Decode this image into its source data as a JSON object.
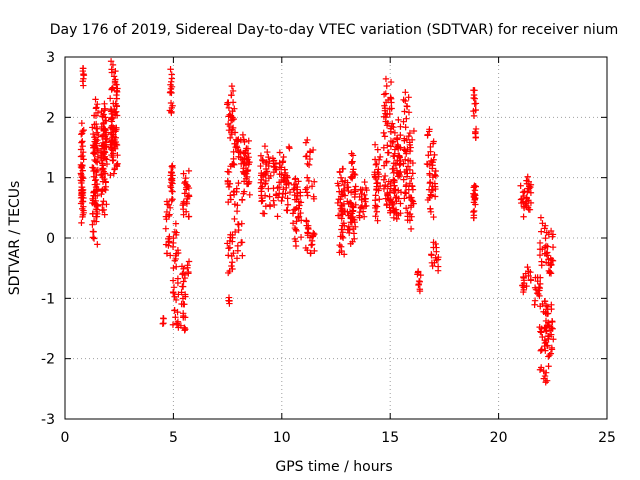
{
  "chart_data": {
    "type": "scatter",
    "title": "Day 176 of 2019, Sidereal Day-to-day VTEC variation (SDTVAR) for receiver nium",
    "xlabel": "GPS time / hours",
    "ylabel": "SDTVAR / TECUs",
    "xlim": [
      0,
      25
    ],
    "ylim": [
      -3,
      3
    ],
    "xticks": [
      0,
      5,
      10,
      15,
      20,
      25
    ],
    "yticks": [
      -3,
      -2,
      -1,
      0,
      1,
      2,
      3
    ],
    "grid": true,
    "marker": "+",
    "color": "#ff0000",
    "segments": [
      {
        "x0": 0.7,
        "x1": 0.9,
        "pts": [
          [
            0.9,
            1.9
          ],
          [
            0.5,
            1.2
          ],
          [
            0.6,
            0.7
          ],
          [
            0.3,
            0.9
          ]
        ]
      },
      {
        "x0": 0.8,
        "x1": 0.9,
        "pts": [
          [
            2.85,
            2.55
          ]
        ]
      },
      {
        "x0": 1.2,
        "x1": 1.6,
        "pts": [
          [
            1.8,
            1.0
          ],
          [
            0.4,
            1.6
          ],
          [
            2.3,
            1.4
          ],
          [
            0.8,
            -0.1
          ],
          [
            0.4,
            0.9
          ]
        ]
      },
      {
        "x0": 1.6,
        "x1": 2.0,
        "pts": [
          [
            2.2,
            1.3
          ],
          [
            0.8,
            1.9
          ],
          [
            1.5,
            0.4
          ],
          [
            2.1,
            1.1
          ]
        ]
      },
      {
        "x0": 2.0,
        "x1": 2.5,
        "pts": [
          [
            1.4,
            2.2
          ],
          [
            1.0,
            2.6
          ],
          [
            1.2,
            1.8
          ],
          [
            2.95,
            1.5
          ]
        ]
      },
      {
        "x0": 4.4,
        "x1": 4.6,
        "pts": [
          [
            -1.38,
            -1.35
          ]
        ]
      },
      {
        "x0": 4.6,
        "x1": 4.9,
        "pts": [
          [
            0.6,
            0.3
          ],
          [
            0.1,
            -0.3
          ]
        ]
      },
      {
        "x0": 4.8,
        "x1": 5.0,
        "pts": [
          [
            2.75,
            2.4
          ],
          [
            2.2,
            2.1
          ]
        ]
      },
      {
        "x0": 4.8,
        "x1": 5.0,
        "pts": [
          [
            1.1,
            0.6
          ],
          [
            1.2,
            0.9
          ]
        ]
      },
      {
        "x0": 4.9,
        "x1": 5.3,
        "pts": [
          [
            0.2,
            -0.5
          ],
          [
            -0.7,
            -1.0
          ],
          [
            -1.2,
            -1.5
          ]
        ]
      },
      {
        "x0": 5.3,
        "x1": 5.6,
        "pts": [
          [
            -0.5,
            -1.2
          ],
          [
            -1.55,
            -1.3
          ]
        ]
      },
      {
        "x0": 5.3,
        "x1": 5.8,
        "pts": [
          [
            0.9,
            0.3
          ],
          [
            1.1,
            0.6
          ],
          [
            -0.6,
            -0.4
          ]
        ]
      },
      {
        "x0": 7.5,
        "x1": 7.6,
        "pts": [
          [
            -1.05,
            -1.0
          ]
        ]
      },
      {
        "x0": 7.4,
        "x1": 7.9,
        "pts": [
          [
            2.5,
            1.8
          ],
          [
            1.3,
            0.6
          ],
          [
            0.1,
            -0.6
          ],
          [
            1.7,
            2.2
          ]
        ]
      },
      {
        "x0": 7.6,
        "x1": 8.3,
        "pts": [
          [
            1.6,
            1.2
          ],
          [
            0.9,
            0.5
          ],
          [
            1.4,
            1.7
          ],
          [
            0.3,
            -0.3
          ]
        ]
      },
      {
        "x0": 8.1,
        "x1": 8.6,
        "pts": [
          [
            1.5,
            1.1
          ],
          [
            0.7,
            1.3
          ],
          [
            1.7,
            0.9
          ]
        ]
      },
      {
        "x0": 8.9,
        "x1": 9.6,
        "pts": [
          [
            1.5,
            0.9
          ],
          [
            0.4,
            1.1
          ],
          [
            1.3,
            0.6
          ]
        ]
      },
      {
        "x0": 9.4,
        "x1": 10.6,
        "pts": [
          [
            1.2,
            0.7
          ],
          [
            1.0,
            1.5
          ],
          [
            0.4,
            0.8
          ],
          [
            1.1,
            0.6
          ],
          [
            0.9,
            1.3
          ]
        ]
      },
      {
        "x0": 10.4,
        "x1": 11.0,
        "pts": [
          [
            0.9,
            0.3
          ],
          [
            0.5,
            1.0
          ],
          [
            -0.1,
            0.4
          ]
        ]
      },
      {
        "x0": 11.0,
        "x1": 11.6,
        "pts": [
          [
            0.3,
            -0.2
          ],
          [
            0.6,
            1.0
          ],
          [
            0.2,
            -0.2
          ],
          [
            1.6,
            1.2
          ]
        ]
      },
      {
        "x0": 12.5,
        "x1": 13.0,
        "pts": [
          [
            0.3,
            0.9
          ],
          [
            -0.3,
            0.5
          ],
          [
            1.2,
            0.4
          ]
        ]
      },
      {
        "x0": 12.9,
        "x1": 13.5,
        "pts": [
          [
            1.4,
            0.8
          ],
          [
            0.1,
            0.7
          ],
          [
            0.5,
            -0.1
          ],
          [
            1.0,
            0.3
          ]
        ]
      },
      {
        "x0": 13.5,
        "x1": 14.0,
        "pts": [
          [
            0.9,
            0.3
          ],
          [
            0.8,
            0.4
          ]
        ]
      },
      {
        "x0": 14.2,
        "x1": 14.6,
        "pts": [
          [
            1.5,
            0.8
          ],
          [
            0.3,
            1.1
          ]
        ]
      },
      {
        "x0": 14.6,
        "x1": 15.2,
        "pts": [
          [
            2.6,
            1.9
          ],
          [
            1.2,
            2.3
          ],
          [
            0.4,
            1.0
          ],
          [
            0.9,
            0.5
          ]
        ]
      },
      {
        "x0": 15.0,
        "x1": 15.6,
        "pts": [
          [
            1.8,
            1.0
          ],
          [
            0.6,
            1.4
          ],
          [
            0.3,
            1.9
          ],
          [
            0.5,
            0.4
          ]
        ]
      },
      {
        "x0": 15.5,
        "x1": 16.2,
        "pts": [
          [
            2.4,
            1.4
          ],
          [
            0.8,
            1.7
          ],
          [
            0.2,
            0.7
          ],
          [
            1.3,
            0.4
          ]
        ]
      },
      {
        "x0": 16.2,
        "x1": 16.5,
        "pts": [
          [
            -0.5,
            -0.9
          ]
        ]
      },
      {
        "x0": 16.6,
        "x1": 17.2,
        "pts": [
          [
            1.8,
            1.2
          ],
          [
            0.4,
            1.0
          ],
          [
            0.7,
            1.3
          ]
        ]
      },
      {
        "x0": 16.8,
        "x1": 17.3,
        "pts": [
          [
            -0.1,
            -0.4
          ],
          [
            -0.5,
            -0.3
          ]
        ]
      },
      {
        "x0": 18.8,
        "x1": 19.0,
        "pts": [
          [
            2.45,
            2.0
          ],
          [
            1.7,
            1.8
          ]
        ]
      },
      {
        "x0": 18.8,
        "x1": 19.0,
        "pts": [
          [
            0.9,
            0.3
          ],
          [
            0.6,
            0.8
          ]
        ]
      },
      {
        "x0": 20.9,
        "x1": 21.6,
        "pts": [
          [
            1.0,
            0.5
          ],
          [
            0.9,
            0.4
          ],
          [
            0.8,
            0.5
          ]
        ]
      },
      {
        "x0": 21.0,
        "x1": 21.6,
        "pts": [
          [
            -0.5,
            -0.8
          ],
          [
            -0.6,
            -0.9
          ]
        ]
      },
      {
        "x0": 21.6,
        "x1": 22.0,
        "pts": [
          [
            -0.6,
            -1.1
          ],
          [
            -0.8,
            -0.9
          ]
        ]
      },
      {
        "x0": 21.8,
        "x1": 22.4,
        "pts": [
          [
            0.3,
            -0.4
          ],
          [
            -1.0,
            -1.8
          ],
          [
            -2.1,
            -2.4
          ],
          [
            -1.5,
            -1.9
          ]
        ]
      },
      {
        "x0": 22.1,
        "x1": 22.6,
        "pts": [
          [
            -0.3,
            -0.6
          ],
          [
            0.1,
            -0.5
          ],
          [
            -1.1,
            -1.6
          ],
          [
            -2.0,
            -1.5
          ]
        ]
      }
    ]
  }
}
